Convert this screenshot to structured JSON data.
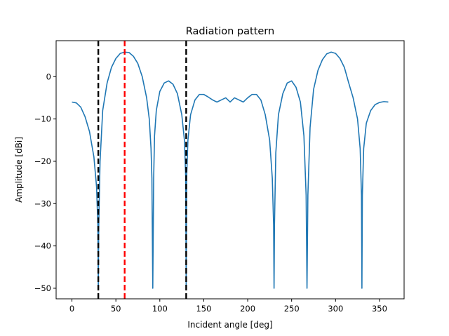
{
  "chart_data": {
    "type": "line",
    "title": "Radiation pattern",
    "xlabel": "Incident angle [deg]",
    "ylabel": "Amplitude [dBi]",
    "xlim": [
      -18,
      378
    ],
    "ylim": [
      -52.5,
      8.5
    ],
    "xticks": [
      0,
      50,
      100,
      150,
      200,
      250,
      300,
      350
    ],
    "yticks": [
      0,
      -10,
      -20,
      -30,
      -40,
      -50
    ],
    "grid": false,
    "series": [
      {
        "color": "#1f77b4",
        "x": [
          0,
          5,
          10,
          15,
          20,
          25,
          28,
          29.5,
          30,
          30.5,
          32,
          35,
          40,
          45,
          50,
          55,
          60,
          65,
          70,
          75,
          80,
          85,
          88,
          90,
          91,
          92,
          93,
          94,
          96,
          100,
          105,
          110,
          115,
          120,
          125,
          128,
          129.5,
          130,
          130.5,
          132,
          135,
          140,
          145,
          150,
          155,
          160,
          165,
          170,
          175,
          180,
          185,
          190,
          195,
          200,
          205,
          210,
          215,
          220,
          225,
          228,
          229.5,
          230,
          230.5,
          232,
          235,
          240,
          245,
          250,
          255,
          260,
          264,
          266.5,
          267.5,
          268.5,
          271,
          275,
          280,
          285,
          290,
          295,
          300,
          305,
          310,
          315,
          320,
          325,
          328,
          329.5,
          330,
          330.5,
          332,
          335,
          340,
          345,
          350,
          355,
          360
        ],
        "y": [
          -6,
          -6.2,
          -7.2,
          -9.5,
          -13,
          -19,
          -26,
          -35,
          -50,
          -35,
          -20,
          -8,
          -1.5,
          2.2,
          4.3,
          5.5,
          5.8,
          5.7,
          4.8,
          3.1,
          0,
          -5,
          -10,
          -17,
          -24,
          -50,
          -24,
          -14,
          -8,
          -3.5,
          -1.5,
          -1,
          -1.8,
          -4,
          -9,
          -15,
          -24,
          -50,
          -24,
          -15,
          -9,
          -5.5,
          -4.2,
          -4.2,
          -4.8,
          -5.5,
          -6,
          -5.5,
          -5,
          -6,
          -5,
          -5.5,
          -6,
          -5,
          -4.2,
          -4.2,
          -5.5,
          -9,
          -15,
          -24,
          -35,
          -50,
          -35,
          -18,
          -9,
          -4,
          -1.5,
          -1,
          -2.5,
          -6,
          -14,
          -28,
          -50,
          -28,
          -12,
          -3,
          1.5,
          4,
          5.4,
          5.8,
          5.5,
          4.3,
          2.2,
          -1.5,
          -5,
          -10,
          -17,
          -28,
          -50,
          -28,
          -17,
          -11,
          -8,
          -6.6,
          -6.1,
          -5.9,
          -6
        ]
      }
    ],
    "vlines": [
      {
        "x": 30,
        "color": "#000000",
        "style": "dashed"
      },
      {
        "x": 60,
        "color": "#ff0000",
        "style": "dashed"
      },
      {
        "x": 130,
        "color": "#000000",
        "style": "dashed"
      }
    ]
  }
}
